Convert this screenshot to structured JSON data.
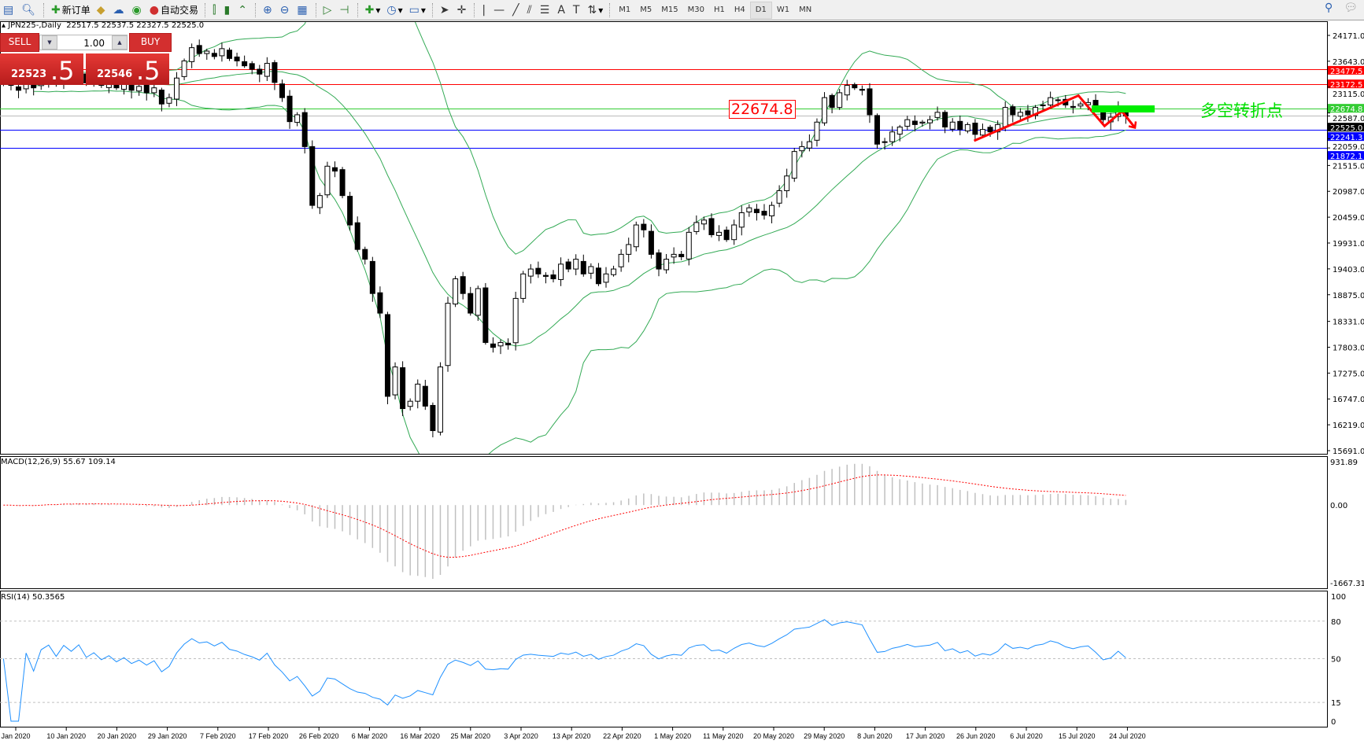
{
  "toolbar": {
    "icons": [
      "new-chart-icon",
      "zoom-chart-icon"
    ],
    "new_order_label": "新订单",
    "auto_trading_label": "自动交易",
    "timeframes": [
      "M1",
      "M5",
      "M15",
      "M30",
      "H1",
      "H4",
      "D1",
      "W1",
      "MN"
    ],
    "active_timeframe": "D1"
  },
  "chart_header": {
    "symbol": "JPN225-,Daily",
    "ohlc": "22517.5 22537.5 22327.5 22525.0"
  },
  "trade_panel": {
    "sell_label": "SELL",
    "buy_label": "BUY",
    "lot": "1.00",
    "sell_big": "22523",
    "sell_small": ".5",
    "buy_big": "22546",
    "buy_small": ".5"
  },
  "annotation": {
    "price_box": "22674.8",
    "text": "多空转折点",
    "text_color": "#00e000"
  },
  "chart_data": {
    "type": "candlestick",
    "price_axis": [
      "24171.0",
      "23643.0",
      "23115.0",
      "22587.0",
      "22059.0",
      "21515.0",
      "20987.0",
      "20459.0",
      "19931.0",
      "19403.0",
      "18875.0",
      "18331.0",
      "17803.0",
      "17275.0",
      "16747.0",
      "16219.0",
      "15691.0"
    ],
    "ylim": [
      15691,
      24171
    ],
    "closes": [
      23175,
      23150,
      23050,
      23200,
      23100,
      23250,
      23300,
      23200,
      23350,
      23280,
      23400,
      23200,
      23300,
      23150,
      23250,
      23100,
      23200,
      23050,
      23130,
      23000,
      23100,
      22770,
      22900,
      23300,
      23650,
      23920,
      23800,
      23850,
      23740,
      23900,
      23700,
      23650,
      23550,
      23480,
      23380,
      23600,
      23210,
      22900,
      22410,
      22550,
      21900,
      20700,
      20900,
      21500,
      21400,
      20900,
      20300,
      19800,
      19600,
      18900,
      18500,
      16800,
      17400,
      16550,
      16700,
      17050,
      16600,
      16100,
      17400,
      18700,
      19200,
      18900,
      18500,
      19000,
      17900,
      17800,
      17900,
      17850,
      18800,
      19300,
      19400,
      19300,
      19250,
      19200,
      19500,
      19400,
      19600,
      19300,
      19450,
      19100,
      19300,
      19400,
      19700,
      19900,
      20300,
      20200,
      19700,
      19400,
      19600,
      19700,
      19650,
      20150,
      20350,
      20400,
      20100,
      20150,
      20000,
      20300,
      20550,
      20650,
      20550,
      20500,
      20700,
      21000,
      21300,
      21800,
      21900,
      22000,
      22400,
      22900,
      22700,
      23000,
      23150,
      23100,
      23050,
      22550,
      21950,
      22000,
      22200,
      22300,
      22450,
      22350,
      22400,
      22450,
      22600,
      22300,
      22400,
      22250,
      22350,
      22150,
      22250,
      22200,
      22350,
      22700,
      22550,
      22600,
      22550,
      22700,
      22750,
      22900,
      22850,
      22750,
      22700,
      22770,
      22800,
      22650,
      22450,
      22500,
      22700,
      22525
    ],
    "hlines": [
      {
        "price": 23477.5,
        "label": "23477.5",
        "color": "#ff0000"
      },
      {
        "price": 23172.5,
        "label": "23172.5",
        "color": "#ff0000"
      },
      {
        "price": 22674.8,
        "label": "22674.8",
        "color": "#33cc33"
      },
      {
        "price": 22525.0,
        "label": "22525.0",
        "color": "#000000"
      },
      {
        "price": 22241.3,
        "label": "22241.3",
        "color": "#0000ff"
      },
      {
        "price": 21872.1,
        "label": "21872.1",
        "color": "#0000ff"
      }
    ],
    "bollinger": {
      "period": 20,
      "deviation": 2,
      "color": "#33aa55"
    },
    "macd": {
      "label": "MACD(12,26,9) 55.67 109.14",
      "axis": [
        "931.89",
        "0.00",
        "-1667.31"
      ],
      "max": 931.89,
      "min": -1667.31
    },
    "rsi": {
      "label": "RSI(14) 50.3565",
      "axis": [
        "100",
        "80",
        "50",
        "15",
        "0"
      ],
      "levels": [
        80,
        50,
        15
      ]
    },
    "dates": [
      "Jan 2020",
      "10 Jan 2020",
      "20 Jan 2020",
      "29 Jan 2020",
      "7 Feb 2020",
      "17 Feb 2020",
      "26 Feb 2020",
      "6 Mar 2020",
      "16 Mar 2020",
      "25 Mar 2020",
      "3 Apr 2020",
      "13 Apr 2020",
      "22 Apr 2020",
      "1 May 2020",
      "11 May 2020",
      "20 May 2020",
      "29 May 2020",
      "8 Jun 2020",
      "17 Jun 2020",
      "26 Jun 2020",
      "6 Jul 2020",
      "15 Jul 2020",
      "24 Jul 2020"
    ]
  }
}
